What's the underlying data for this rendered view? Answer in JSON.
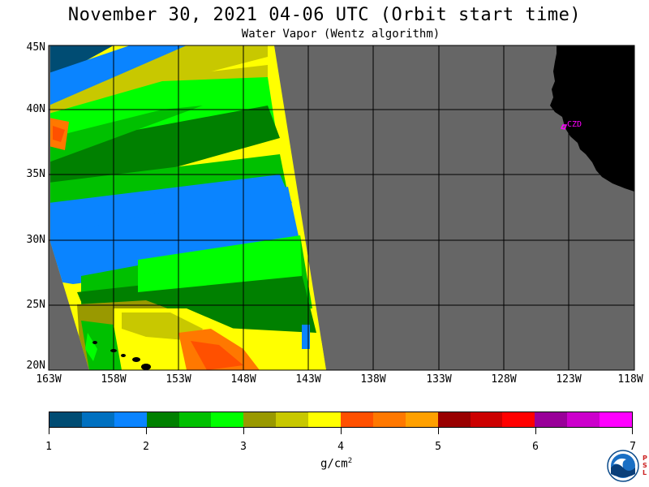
{
  "title": "November 30, 2021  04-06 UTC  (Orbit start time)",
  "subtitle": "Water Vapor (Wentz algorithm)",
  "map": {
    "lat_labels": [
      "45N",
      "40N",
      "35N",
      "30N",
      "25N",
      "20N"
    ],
    "lon_labels": [
      "163W",
      "158W",
      "153W",
      "148W",
      "143W",
      "138W",
      "133W",
      "128W",
      "123W",
      "118W"
    ],
    "land_color": "#000000",
    "no_data_color": "#666666",
    "location_marker": "CZD",
    "marker_color": "#ff00ff"
  },
  "colorbar": {
    "colors": [
      "#004c73",
      "#0070c0",
      "#0a84ff",
      "#008000",
      "#00c000",
      "#00ff00",
      "#999900",
      "#c8c800",
      "#ffff00",
      "#ff5000",
      "#ff7800",
      "#ffa000",
      "#990000",
      "#cc0000",
      "#ff0000",
      "#990099",
      "#cc00cc",
      "#ff00ff"
    ],
    "tick_labels": [
      "1",
      "2",
      "3",
      "4",
      "5",
      "6",
      "7"
    ],
    "unit": "g/cm",
    "unit_exp": "2"
  },
  "logo": {
    "name": "noaa-logo",
    "side_text": "PSL"
  }
}
